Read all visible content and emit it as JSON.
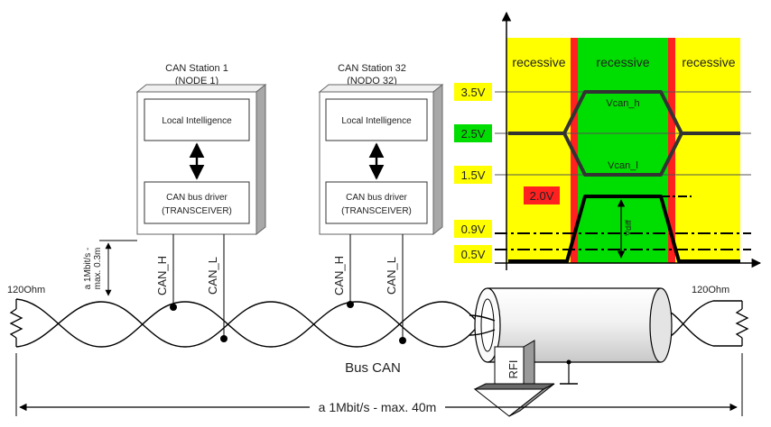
{
  "stations": [
    {
      "title": "CAN Station 1",
      "subtitle": "(NODE 1)",
      "logic_label": "Local Intelligence",
      "driver_line1": "CAN bus driver",
      "driver_line2": "(TRANSCEIVER)",
      "wire_h": "CAN_H",
      "wire_l": "CAN_L"
    },
    {
      "title": "CAN Station 32",
      "subtitle": "(NODO 32)",
      "logic_label": "Local Intelligence",
      "driver_line1": "CAN bus driver",
      "driver_line2": "(TRANSCEIVER)",
      "wire_h": "CAN_H",
      "wire_l": "CAN_L"
    }
  ],
  "stub": {
    "line1": "a 1Mbit/s -",
    "line2": "max. 0.3m"
  },
  "terminators": {
    "left": "120Ohm",
    "right": "120Ohm"
  },
  "bus_label": "Bus CAN",
  "rfi_label": "RFI",
  "length_label": "a 1Mbit/s - max. 40m",
  "signal": {
    "state_labels": [
      "recessive",
      "recessive",
      "recessive"
    ],
    "levels": [
      "3.5V",
      "2.5V",
      "1.5V",
      "0.9V",
      "0.5V"
    ],
    "diff_threshold": "2.0V",
    "vcan_h": "Vcan_h",
    "vcan_l": "Vcan_l",
    "vdiff": "Vdiff",
    "colors": {
      "recessive_bg": "#ffff00",
      "dominant_bg": "#00dd00",
      "edge": "#ff2020",
      "level_badge": "#ffff00",
      "mid_badge": "#00dd00",
      "threshold_badge": "#ff2020"
    }
  }
}
